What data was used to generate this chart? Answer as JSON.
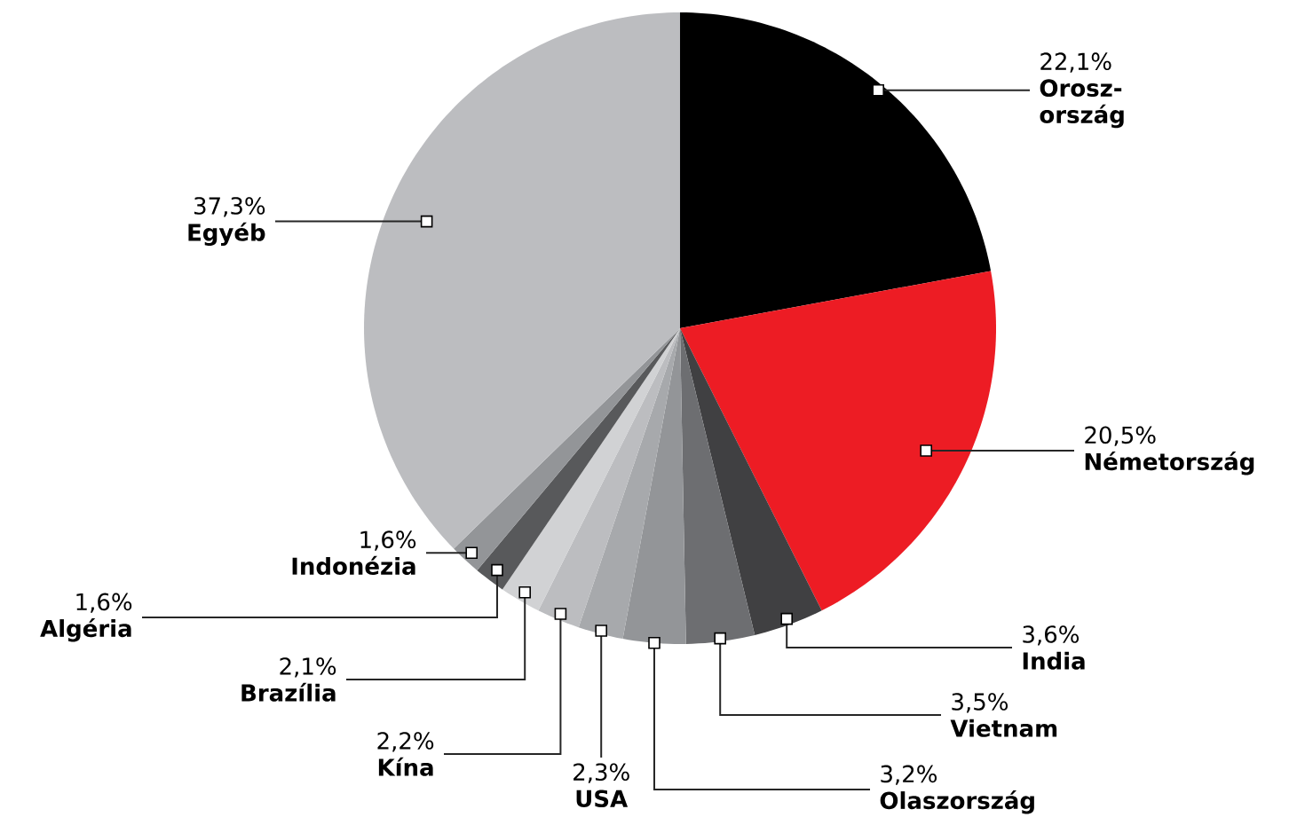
{
  "chart_data": {
    "type": "pie",
    "categories": [
      "Orosz-ország",
      "Németország",
      "India",
      "Vietnam",
      "Olaszország",
      "USA",
      "Kína",
      "Brazília",
      "Algéria",
      "Indonézia",
      "Egyéb"
    ],
    "values": [
      22.1,
      20.5,
      3.6,
      3.5,
      3.2,
      2.3,
      2.2,
      2.1,
      1.6,
      1.6,
      37.3
    ],
    "colors": [
      "#000000",
      "#ed1c24",
      "#404042",
      "#6d6e71",
      "#939598",
      "#a7a9ac",
      "#bcbdc0",
      "#d1d2d4",
      "#58595b",
      "#939598",
      "#bcbdc0"
    ],
    "value_labels": [
      "22,1%",
      "20,5%",
      "3,6%",
      "3,5%",
      "3,2%",
      "2,3%",
      "2,2%",
      "2,1%",
      "1,6%",
      "1,6%",
      "37,3%"
    ]
  }
}
